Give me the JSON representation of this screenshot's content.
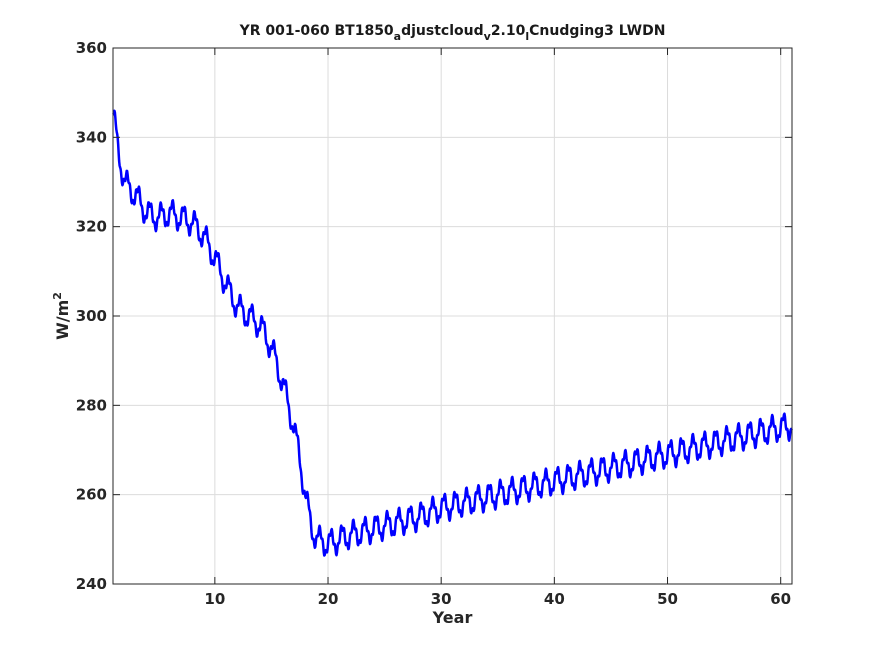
{
  "chart_data": {
    "type": "line",
    "title": {
      "parts": [
        {
          "text": "YR 001-060 BT1850",
          "shift": "none"
        },
        {
          "text": "a",
          "shift": "sub"
        },
        {
          "text": "djustcloud",
          "shift": "none"
        },
        {
          "text": "v",
          "shift": "sub"
        },
        {
          "text": "2.10",
          "shift": "none"
        },
        {
          "text": "l",
          "shift": "sub"
        },
        {
          "text": "Cnudging3 LWDN",
          "shift": "none"
        }
      ]
    },
    "xlabel": "Year",
    "ylabel": {
      "base": "W/m",
      "sup": "2"
    },
    "xlim": [
      1,
      61
    ],
    "ylim": [
      240,
      360
    ],
    "xticks": [
      10,
      20,
      30,
      40,
      50,
      60
    ],
    "yticks": [
      240,
      260,
      280,
      300,
      320,
      340,
      360
    ],
    "grid": true,
    "box": true,
    "series": [
      {
        "color": "#0000ff",
        "line_width": 2.5,
        "seasonal_cycle_amplitude": 2.5,
        "points": [
          [
            1.0,
            346
          ],
          [
            1.4,
            338
          ],
          [
            2.0,
            330
          ],
          [
            3.0,
            327
          ],
          [
            4.0,
            323
          ],
          [
            5.0,
            322
          ],
          [
            6.0,
            323
          ],
          [
            7.0,
            322
          ],
          [
            8.0,
            321
          ],
          [
            9.0,
            318
          ],
          [
            10.0,
            313
          ],
          [
            11.0,
            307
          ],
          [
            12.0,
            302
          ],
          [
            13.0,
            300
          ],
          [
            14.0,
            298
          ],
          [
            15.0,
            293
          ],
          [
            16.0,
            285
          ],
          [
            17.0,
            275
          ],
          [
            17.5,
            268
          ],
          [
            18.0,
            260
          ],
          [
            18.5,
            253
          ],
          [
            19.0,
            250
          ],
          [
            20.0,
            249
          ],
          [
            21.0,
            250
          ],
          [
            22.0,
            251
          ],
          [
            25.0,
            253
          ],
          [
            28.0,
            255
          ],
          [
            30.0,
            257
          ],
          [
            35.0,
            260
          ],
          [
            40.0,
            263
          ],
          [
            45.0,
            266
          ],
          [
            50.0,
            269
          ],
          [
            55.0,
            272
          ],
          [
            60.0,
            275
          ],
          [
            61.0,
            275.5
          ]
        ]
      }
    ]
  }
}
